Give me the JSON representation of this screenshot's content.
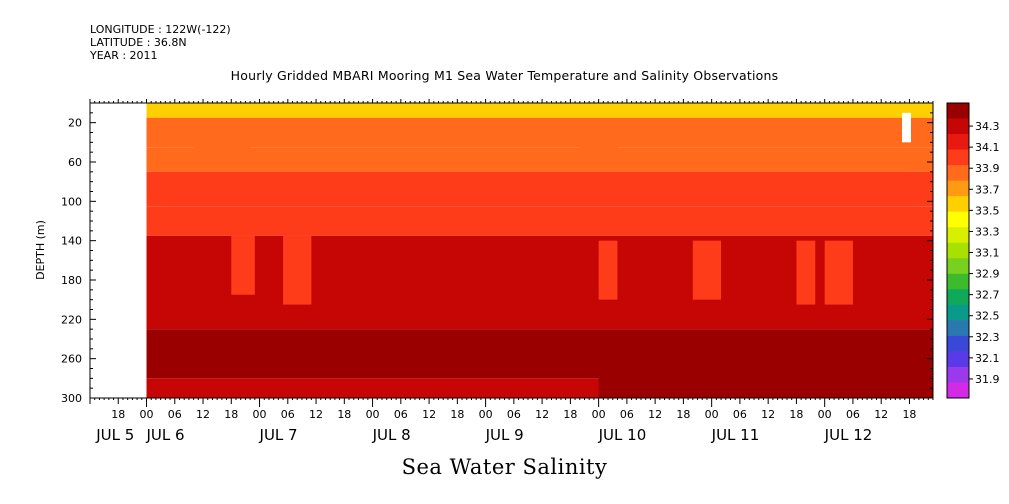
{
  "header": {
    "longitude": "LONGITUDE : 122W(-122)",
    "latitude": "LATITUDE : 36.8N",
    "year": "YEAR : 2011",
    "title": "Hourly Gridded MBARI Mooring M1 Sea Water Temperature and Salinity Observations",
    "bottom_title": "Sea Water Salinity"
  },
  "chart_data": {
    "type": "heatmap",
    "title": "Hourly Gridded MBARI Mooring M1 Sea Water Temperature and Salinity Observations",
    "variable": "Sea Water Salinity",
    "ylabel": "DEPTH (m)",
    "ylim": [
      300,
      0
    ],
    "y_reversed": true,
    "xlim": [
      "2011-07-05T12:00",
      "2011-07-12T23:00"
    ],
    "data_start": "2011-07-06T00:00",
    "y_ticks": [
      20,
      60,
      100,
      140,
      180,
      220,
      260,
      300
    ],
    "x_tick_labels": [
      "18",
      "00",
      "06",
      "12",
      "18",
      "00",
      "06",
      "12",
      "18",
      "00",
      "06",
      "12",
      "18",
      "00",
      "06",
      "12",
      "18",
      "00",
      "06",
      "12",
      "18",
      "00",
      "06",
      "12",
      "18",
      "00",
      "06",
      "12",
      "18",
      "00",
      "06",
      "12"
    ],
    "day_labels": [
      "JUL 5",
      "JUL 6",
      "JUL 7",
      "JUL 8",
      "JUL 9",
      "JUL 10",
      "JUL 11",
      "JUL 12"
    ],
    "colorbar": {
      "levels": [
        34.3,
        34.1,
        33.9,
        33.7,
        33.5,
        33.3,
        33.1,
        32.9,
        32.7,
        32.5,
        32.3,
        32.1,
        31.9
      ],
      "colors": [
        "#9b0000",
        "#c60505",
        "#e81910",
        "#ff3c1a",
        "#ff6a1c",
        "#ff9a12",
        "#ffd000",
        "#ffff00",
        "#d8f000",
        "#a8e000",
        "#78d020",
        "#3cbc2c",
        "#10a85a",
        "#0a9a8a",
        "#2a78b0",
        "#3a48d8",
        "#5a3ae8",
        "#9a3aec",
        "#d22ae6"
      ]
    },
    "depth_profile": [
      {
        "depth_range": [
          5,
          15
        ],
        "salinity": 33.6
      },
      {
        "depth_range": [
          15,
          45
        ],
        "salinity": 33.75
      },
      {
        "depth_range": [
          45,
          70
        ],
        "salinity": 33.85
      },
      {
        "depth_range": [
          70,
          105
        ],
        "salinity": 33.95
      },
      {
        "depth_range": [
          105,
          135
        ],
        "salinity": 34.05
      },
      {
        "depth_range": [
          135,
          230
        ],
        "salinity": 34.15
      },
      {
        "depth_range": [
          230,
          280
        ],
        "salinity": 34.3
      },
      {
        "depth_range": [
          280,
          300
        ],
        "salinity": 34.2
      }
    ],
    "grid": false,
    "legend": "colorbar-right"
  }
}
